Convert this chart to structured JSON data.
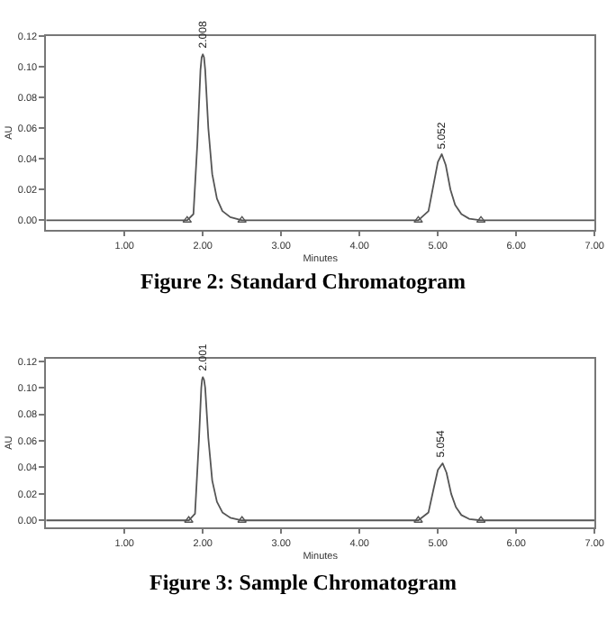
{
  "chart_data": [
    {
      "type": "line",
      "title": "Figure 2: Standard Chromatogram",
      "xlabel": "Minutes",
      "ylabel": "AU",
      "marker": "none",
      "line_style": "solid",
      "xlim": [
        0,
        7.0
      ],
      "ylim": [
        -0.006,
        0.12
      ],
      "xticks": [
        {
          "value": 1,
          "label": "1.00"
        },
        {
          "value": 2,
          "label": "2.00"
        },
        {
          "value": 3,
          "label": "3.00"
        },
        {
          "value": 4,
          "label": "4.00"
        },
        {
          "value": 5,
          "label": "5.00"
        },
        {
          "value": 6,
          "label": "6.00"
        },
        {
          "value": 7,
          "label": "7.00"
        }
      ],
      "yticks": [
        {
          "value": 0,
          "label": "0.00"
        },
        {
          "value": 0.02,
          "label": "0.02"
        },
        {
          "value": 0.04,
          "label": "0.04"
        },
        {
          "value": 0.06,
          "label": "0.06"
        },
        {
          "value": 0.08,
          "label": "0.08"
        },
        {
          "value": 0.1,
          "label": "0.10"
        },
        {
          "value": 0.12,
          "label": "0.12"
        }
      ],
      "series": [
        {
          "color": "#555555",
          "x": [
            0,
            1.8,
            1.88,
            1.93,
            1.97,
            1.985,
            2.0,
            2.015,
            2.03,
            2.07,
            2.12,
            2.18,
            2.25,
            2.35,
            2.5,
            4.75,
            4.88,
            4.94,
            5.0,
            5.05,
            5.1,
            5.16,
            5.22,
            5.3,
            5.4,
            5.55,
            7.0
          ],
          "values": [
            0,
            0,
            0.004,
            0.05,
            0.098,
            0.106,
            0.108,
            0.106,
            0.098,
            0.06,
            0.03,
            0.014,
            0.006,
            0.002,
            0,
            0,
            0.006,
            0.022,
            0.038,
            0.043,
            0.036,
            0.02,
            0.01,
            0.004,
            0.001,
            0,
            0
          ]
        },
        {
          "type": "scatter",
          "marker": "triangle",
          "color": "#555555",
          "x": [
            1.8,
            2.5,
            4.75,
            5.55
          ],
          "values": [
            0,
            0,
            0,
            0
          ]
        }
      ],
      "annotations": [
        {
          "text": "2.008",
          "x": 2.0,
          "y": 0.108
        },
        {
          "text": "5.052",
          "x": 5.05,
          "y": 0.043
        }
      ]
    },
    {
      "type": "line",
      "title": "Figure 3: Sample Chromatogram",
      "xlabel": "Minutes",
      "ylabel": "AU",
      "marker": "none",
      "line_style": "solid",
      "xlim": [
        0,
        7.0
      ],
      "ylim": [
        -0.005,
        0.122
      ],
      "xticks": [
        {
          "value": 1,
          "label": "1.00"
        },
        {
          "value": 2,
          "label": "2.00"
        },
        {
          "value": 3,
          "label": "3.00"
        },
        {
          "value": 4,
          "label": "4.00"
        },
        {
          "value": 5,
          "label": "5.00"
        },
        {
          "value": 6,
          "label": "6.00"
        },
        {
          "value": 7,
          "label": "7.00"
        }
      ],
      "yticks": [
        {
          "value": 0,
          "label": "0.00"
        },
        {
          "value": 0.02,
          "label": "0.02"
        },
        {
          "value": 0.04,
          "label": "0.04"
        },
        {
          "value": 0.06,
          "label": "0.06"
        },
        {
          "value": 0.08,
          "label": "0.08"
        },
        {
          "value": 0.1,
          "label": "0.10"
        },
        {
          "value": 0.12,
          "label": "0.12"
        }
      ],
      "series": [
        {
          "color": "#555555",
          "x": [
            0,
            1.82,
            1.9,
            1.95,
            1.98,
            1.99,
            2.0,
            2.015,
            2.03,
            2.07,
            2.12,
            2.18,
            2.25,
            2.35,
            2.5,
            4.75,
            4.88,
            4.95,
            5.0,
            5.06,
            5.11,
            5.17,
            5.23,
            5.3,
            5.4,
            5.55,
            7.0
          ],
          "values": [
            0,
            0,
            0.005,
            0.06,
            0.1,
            0.106,
            0.108,
            0.106,
            0.1,
            0.062,
            0.03,
            0.014,
            0.006,
            0.002,
            0,
            0,
            0.006,
            0.025,
            0.038,
            0.043,
            0.036,
            0.02,
            0.01,
            0.004,
            0.001,
            0,
            0
          ]
        },
        {
          "type": "scatter",
          "marker": "triangle",
          "color": "#555555",
          "x": [
            1.82,
            2.5,
            4.75,
            5.55
          ],
          "values": [
            0,
            0,
            0,
            0
          ]
        }
      ],
      "annotations": [
        {
          "text": "2.001",
          "x": 2.0,
          "y": 0.108
        },
        {
          "text": "5.054",
          "x": 5.06,
          "y": 0.043
        }
      ]
    }
  ]
}
